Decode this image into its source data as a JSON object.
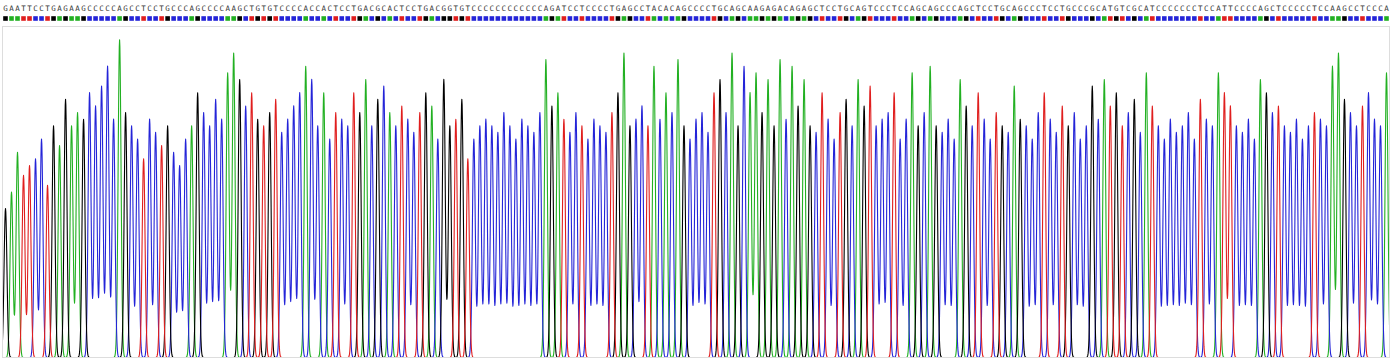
{
  "chart_data": {
    "type": "chromatogram",
    "sequence": "GAATTCCTGAGAAGCCCCCAGCCTCCTGCCCAGCCCCAAGCTGTGTCCCCACCACTCCTGACGCACTCCTGACGGTGTCCCCCCCCCCCCAGATCCTCCCCTGAGCCTACACAGCCCCTGCAGCAAGAGACAGAGCTCCTGCAGTCCCTCCAGCAGCCCAGCTCCTGCAGCCCTCCTGCCCGCATGTCGCATCCCCCCCTCCATTCCCCAGCTCCCCCTCCAAGCCTCCCA",
    "values": [
      45,
      50,
      62,
      55,
      58,
      60,
      66,
      52,
      70,
      64,
      78,
      70,
      74,
      72,
      80,
      76,
      82,
      88,
      72,
      96,
      74,
      70,
      66,
      60,
      72,
      68,
      64,
      70,
      62,
      58,
      66,
      70,
      80,
      74,
      70,
      78,
      72,
      86,
      92,
      84,
      76,
      80,
      72,
      70,
      74,
      78,
      68,
      72,
      76,
      80,
      88,
      84,
      70,
      80,
      66,
      74,
      72,
      70,
      80,
      74,
      84,
      70,
      78,
      82,
      74,
      70,
      76,
      72,
      68,
      74,
      80,
      76,
      66,
      84,
      70,
      72,
      78,
      60,
      66,
      70,
      72,
      70,
      68,
      74,
      70,
      66,
      72,
      70,
      68,
      74,
      90,
      76,
      80,
      72,
      68,
      74,
      70,
      66,
      72,
      70,
      68,
      74,
      80,
      92,
      70,
      72,
      76,
      70,
      88,
      72,
      80,
      74,
      90,
      70,
      66,
      72,
      74,
      68,
      80,
      84,
      74,
      92,
      70,
      88,
      80,
      86,
      74,
      84,
      70,
      90,
      72,
      88,
      76,
      84,
      70,
      68,
      80,
      72,
      66,
      74,
      78,
      70,
      84,
      76,
      82,
      70,
      72,
      74,
      80,
      66,
      72,
      86,
      70,
      74,
      88,
      70,
      68,
      72,
      66,
      84,
      76,
      70,
      80,
      72,
      66,
      74,
      70,
      68,
      82,
      72,
      70,
      66,
      74,
      80,
      72,
      68,
      76,
      70,
      74,
      66,
      70,
      82,
      72,
      84,
      76,
      80,
      70,
      74,
      78,
      68,
      86,
      76,
      70,
      66,
      72,
      68,
      70,
      74,
      66,
      78,
      72,
      70,
      86,
      80,
      76,
      70,
      68,
      72,
      66,
      84,
      80,
      74,
      76,
      70,
      68,
      72,
      66,
      70,
      74,
      72,
      70,
      88,
      92,
      78,
      74,
      70,
      76,
      80,
      72,
      70,
      86
    ],
    "series": [
      {
        "name": "A",
        "color": "#22b022"
      },
      {
        "name": "C",
        "color": "#2424d8"
      },
      {
        "name": "G",
        "color": "#000000"
      },
      {
        "name": "T",
        "color": "#e01e1e"
      }
    ],
    "xlim": [
      0.5,
      231.5
    ],
    "ylim": [
      0,
      100
    ],
    "tick_labels": false,
    "grid": false
  }
}
